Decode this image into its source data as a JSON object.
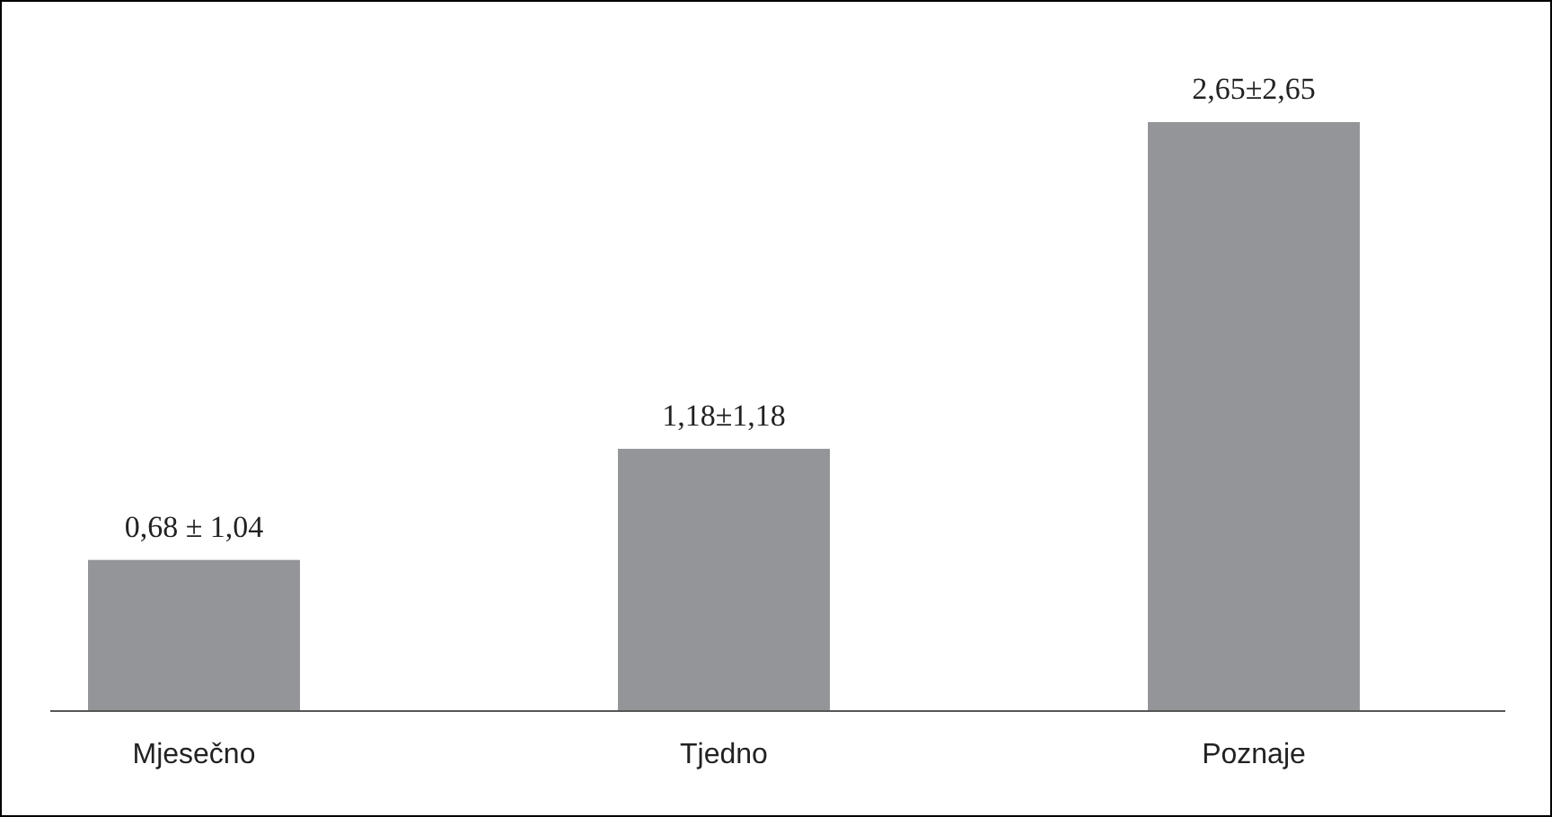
{
  "chart_data": {
    "type": "bar",
    "categories": [
      "Mjesečno",
      "Tjedno",
      "Poznaje"
    ],
    "values": [
      0.68,
      1.18,
      2.65
    ],
    "value_labels": [
      "0,68 ± 1,04",
      "1,18±1,18",
      "2,65±2,65"
    ],
    "color": "#939598"
  }
}
